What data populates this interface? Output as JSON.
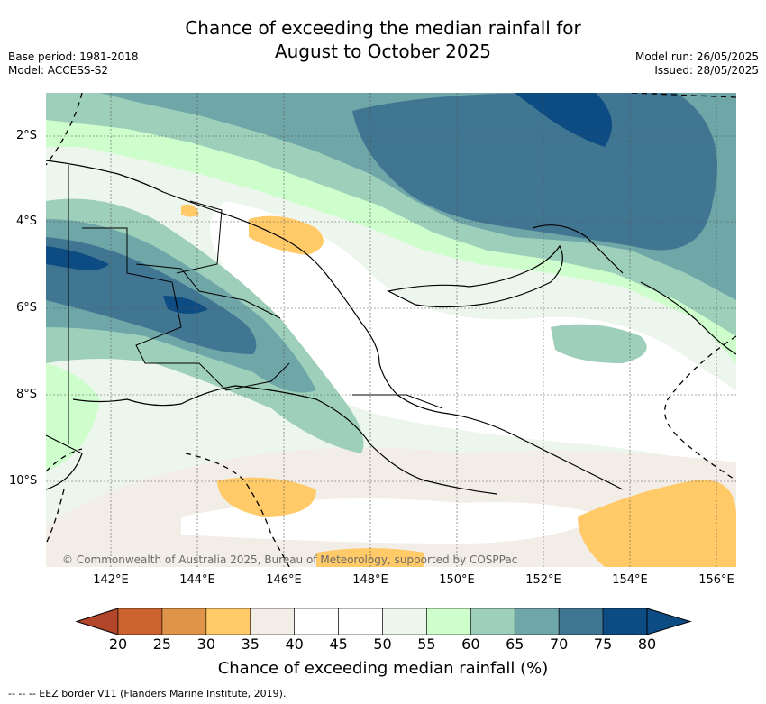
{
  "title": {
    "line1": "Chance of exceeding the median rainfall for",
    "line2": "August to October 2025"
  },
  "meta": {
    "base_period": "Base period: 1981-2018",
    "model": "Model: ACCESS-S2",
    "model_run": "Model run: 26/05/2025",
    "issued": "Issued: 28/05/2025"
  },
  "lat_labels": [
    "2°S",
    "4°S",
    "6°S",
    "8°S",
    "10°S"
  ],
  "lon_labels": [
    "142°E",
    "144°E",
    "146°E",
    "148°E",
    "150°E",
    "152°E",
    "154°E",
    "156°E"
  ],
  "copyright": "© Commonwealth of Australia 2025, Bureau of Meteorology, supported by COSPPac",
  "colorbar": {
    "ticks": [
      "20",
      "25",
      "30",
      "35",
      "40",
      "45",
      "50",
      "55",
      "60",
      "65",
      "70",
      "75",
      "80"
    ],
    "colors": [
      "#b2462a",
      "#cb6330",
      "#e0944a",
      "#ffca67",
      "#f3ede7",
      "#ffffff",
      "#ffffff",
      "#edf6ec",
      "#cdfecc",
      "#9dcfbb",
      "#6fa6a7",
      "#417692",
      "#0d4b83"
    ],
    "label": "Chance of exceeding median rainfall (%)"
  },
  "footer": "-- -- -- EEZ border V11 (Flanders Marine Institute, 2019)."
}
